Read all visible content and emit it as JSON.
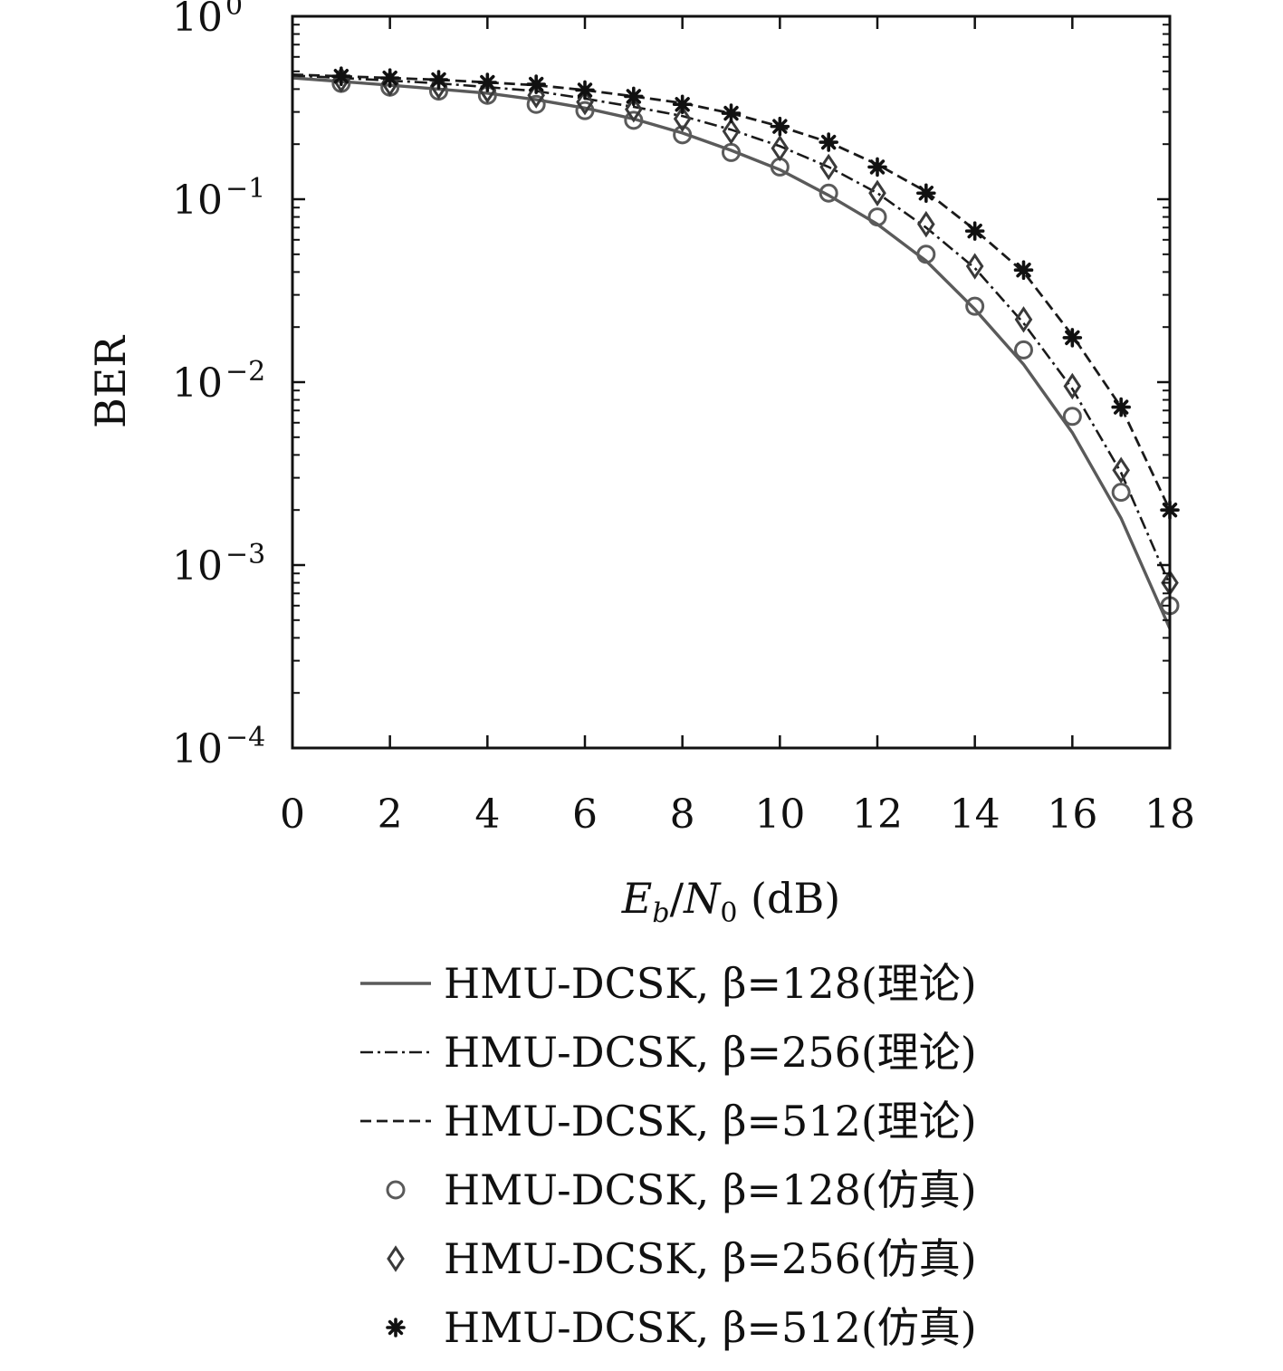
{
  "chart_data": {
    "type": "line",
    "xlabel": "E_b/N_0 (dB)",
    "ylabel": "BER",
    "xlim": [
      0,
      18
    ],
    "ylim": [
      0.0001,
      1
    ],
    "yscale": "log",
    "grid": false,
    "legend_position": "below",
    "x_ticks": [
      0,
      2,
      4,
      6,
      8,
      10,
      12,
      14,
      16,
      18
    ],
    "y_ticks": [
      {
        "value": 1,
        "base": "10",
        "exp": "0"
      },
      {
        "value": 0.1,
        "base": "10",
        "exp": "−1"
      },
      {
        "value": 0.01,
        "base": "10",
        "exp": "−2"
      },
      {
        "value": 0.001,
        "base": "10",
        "exp": "−3"
      },
      {
        "value": 0.0001,
        "base": "10",
        "exp": "−4"
      }
    ],
    "series": [
      {
        "name": "HMU-DCSK, β=128(理论)",
        "style": "solid",
        "color": "#5a5a5a",
        "x": [
          0,
          1,
          2,
          3,
          4,
          5,
          6,
          7,
          8,
          9,
          10,
          11,
          12,
          13,
          14,
          15,
          16,
          17,
          18
        ],
        "y": [
          0.46,
          0.44,
          0.42,
          0.4,
          0.38,
          0.35,
          0.315,
          0.275,
          0.23,
          0.185,
          0.145,
          0.105,
          0.073,
          0.046,
          0.025,
          0.0125,
          0.0053,
          0.0018,
          0.00045
        ]
      },
      {
        "name": "HMU-DCSK, β=256(理论)",
        "style": "dashdot",
        "color": "#1a1a1a",
        "x": [
          0,
          1,
          2,
          3,
          4,
          5,
          6,
          7,
          8,
          9,
          10,
          11,
          12,
          13,
          14,
          15,
          16,
          17,
          18
        ],
        "y": [
          0.475,
          0.46,
          0.445,
          0.43,
          0.41,
          0.39,
          0.355,
          0.32,
          0.285,
          0.24,
          0.195,
          0.15,
          0.108,
          0.07,
          0.042,
          0.021,
          0.0092,
          0.0032,
          0.00078
        ]
      },
      {
        "name": "HMU-DCSK, β=512(理论)",
        "style": "dashed",
        "color": "#1a1a1a",
        "x": [
          0,
          1,
          2,
          3,
          4,
          5,
          6,
          7,
          8,
          9,
          10,
          11,
          12,
          13,
          14,
          15,
          16,
          17,
          18
        ],
        "y": [
          0.48,
          0.47,
          0.46,
          0.45,
          0.435,
          0.42,
          0.395,
          0.365,
          0.335,
          0.295,
          0.25,
          0.205,
          0.155,
          0.11,
          0.068,
          0.04,
          0.018,
          0.0073,
          0.002
        ]
      },
      {
        "name": "HMU-DCSK, β=128(仿真)",
        "marker": "circle",
        "color": "#5a5a5a",
        "x": [
          1,
          2,
          3,
          4,
          5,
          6,
          7,
          8,
          9,
          10,
          11,
          12,
          13,
          14,
          15,
          16,
          17,
          18
        ],
        "y": [
          0.43,
          0.41,
          0.39,
          0.37,
          0.33,
          0.305,
          0.27,
          0.225,
          0.18,
          0.15,
          0.108,
          0.08,
          0.05,
          0.026,
          0.015,
          0.0065,
          0.0025,
          0.0006
        ]
      },
      {
        "name": "HMU-DCSK, β=256(仿真)",
        "marker": "diamond",
        "color": "#3a3a3a",
        "x": [
          1,
          2,
          3,
          4,
          5,
          6,
          7,
          8,
          9,
          10,
          11,
          12,
          13,
          14,
          15,
          16,
          17,
          18
        ],
        "y": [
          0.45,
          0.43,
          0.415,
          0.395,
          0.37,
          0.34,
          0.31,
          0.275,
          0.235,
          0.19,
          0.15,
          0.108,
          0.073,
          0.043,
          0.022,
          0.0095,
          0.0033,
          0.0008
        ]
      },
      {
        "name": "HMU-DCSK, β=512(仿真)",
        "marker": "asterisk",
        "color": "#111111",
        "x": [
          1,
          2,
          3,
          4,
          5,
          6,
          7,
          8,
          9,
          10,
          11,
          12,
          13,
          14,
          15,
          16,
          17,
          18
        ],
        "y": [
          0.47,
          0.46,
          0.45,
          0.435,
          0.425,
          0.395,
          0.365,
          0.33,
          0.295,
          0.25,
          0.205,
          0.15,
          0.108,
          0.067,
          0.041,
          0.0175,
          0.0073,
          0.002
        ]
      }
    ]
  }
}
